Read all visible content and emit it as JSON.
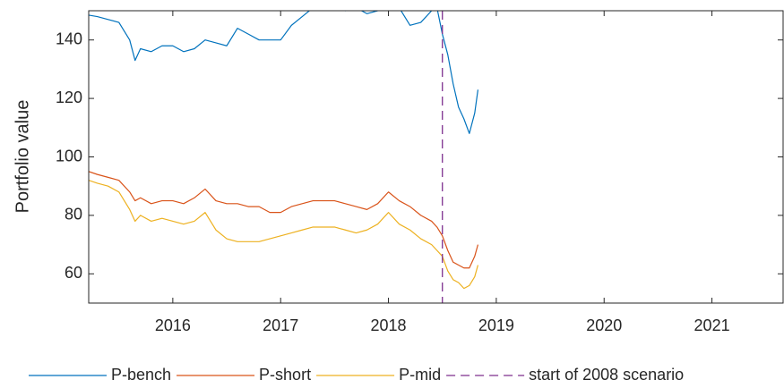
{
  "chart_data": {
    "type": "line",
    "ylabel": "Portfolio value",
    "xlim": [
      2015.22,
      2021.66
    ],
    "xticks": [
      2016,
      2017,
      2018,
      2019,
      2020,
      2021
    ],
    "ylim": [
      50,
      150
    ],
    "yticks": [
      60,
      80,
      100,
      120,
      140
    ],
    "grid": false,
    "legend": "bottom",
    "x": [
      2015.22,
      2015.3,
      2015.4,
      2015.5,
      2015.6,
      2015.65,
      2015.7,
      2015.8,
      2015.9,
      2016.0,
      2016.1,
      2016.2,
      2016.3,
      2016.4,
      2016.5,
      2016.6,
      2016.7,
      2016.8,
      2016.9,
      2017.0,
      2017.1,
      2017.2,
      2017.3,
      2017.4,
      2017.5,
      2017.6,
      2017.7,
      2017.8,
      2017.9,
      2018.0,
      2018.1,
      2018.2,
      2018.3,
      2018.4,
      2018.45,
      2018.5,
      2018.55,
      2018.6,
      2018.65,
      2018.7,
      2018.75,
      2018.8,
      2018.83
    ],
    "series": [
      {
        "name": "P-bench",
        "color": "#0072bd",
        "values": [
          148.5,
          148,
          147,
          146,
          140,
          133,
          137,
          136,
          138,
          138,
          136,
          137,
          140,
          139,
          138,
          144,
          142,
          140,
          140,
          140,
          145,
          148,
          151,
          152,
          151,
          150,
          151,
          149,
          150,
          152,
          151,
          145,
          146,
          150,
          151,
          142,
          135,
          125,
          117,
          113,
          108,
          115,
          123
        ]
      },
      {
        "name": "P-short",
        "color": "#d95319",
        "values": [
          95,
          94,
          93,
          92,
          88,
          85,
          86,
          84,
          85,
          85,
          84,
          86,
          89,
          85,
          84,
          84,
          83,
          83,
          81,
          81,
          83,
          84,
          85,
          85,
          85,
          84,
          83,
          82,
          84,
          88,
          85,
          83,
          80,
          78,
          76,
          73,
          68,
          64,
          63,
          62,
          62,
          66,
          70
        ]
      },
      {
        "name": "P-mid",
        "color": "#edb120",
        "values": [
          92,
          91,
          90,
          88,
          82,
          78,
          80,
          78,
          79,
          78,
          77,
          78,
          81,
          75,
          72,
          71,
          71,
          71,
          72,
          73,
          74,
          75,
          76,
          76,
          76,
          75,
          74,
          75,
          77,
          81,
          77,
          75,
          72,
          70,
          68,
          66,
          61,
          58,
          57,
          55,
          56,
          59,
          63
        ]
      },
      {
        "name": "start of 2008 scenario",
        "color": "#7e2f8e",
        "xline": 2018.5,
        "dash": true
      }
    ]
  }
}
